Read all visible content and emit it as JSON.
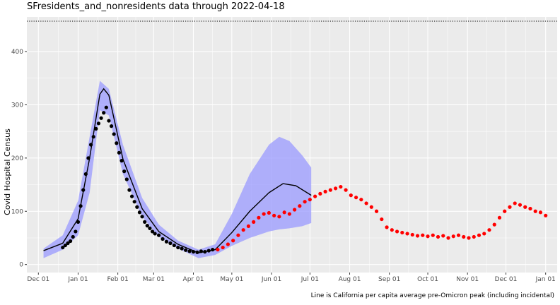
{
  "title": "SFresidents_and_nonresidents data through 2022-04-18",
  "caption": "Line is California per capita average pre-Omicron peak (including incidental)",
  "chart_data": {
    "type": "scatter",
    "title": "SFresidents_and_nonresidents data through 2022-04-18",
    "xlabel": "",
    "ylabel": "Covid Hospital Census",
    "xlim": [
      "2021-11-22",
      "2023-01-10"
    ],
    "ylim": [
      -15,
      465
    ],
    "yticks": [
      0,
      100,
      200,
      300,
      400
    ],
    "xticks": [
      {
        "date": "2021-12-01",
        "label": "Dec 01"
      },
      {
        "date": "2022-01-01",
        "label": "Jan 01"
      },
      {
        "date": "2022-02-01",
        "label": "Feb 01"
      },
      {
        "date": "2022-03-01",
        "label": "Mar 01"
      },
      {
        "date": "2022-04-01",
        "label": "Apr 01"
      },
      {
        "date": "2022-05-01",
        "label": "May 01"
      },
      {
        "date": "2022-06-01",
        "label": "Jun 01"
      },
      {
        "date": "2022-07-01",
        "label": "Jul 01"
      },
      {
        "date": "2022-08-01",
        "label": "Aug 01"
      },
      {
        "date": "2022-09-01",
        "label": "Sep 01"
      },
      {
        "date": "2022-10-01",
        "label": "Oct 01"
      },
      {
        "date": "2022-11-01",
        "label": "Nov 01"
      },
      {
        "date": "2022-12-01",
        "label": "Dec 01"
      },
      {
        "date": "2023-01-01",
        "label": "Jan 01"
      }
    ],
    "grid": true,
    "reference_line": {
      "value": 457,
      "style": "dotted",
      "color": "#000000"
    },
    "colors": {
      "panel": "#ebebeb",
      "grid": "#ffffff",
      "ribbon": "#9999ff",
      "observed": "#000000",
      "recent": "#ff0000"
    },
    "ribbon": [
      {
        "date": "2021-12-05",
        "low": 12,
        "high": 30
      },
      {
        "date": "2021-12-20",
        "low": 28,
        "high": 55
      },
      {
        "date": "2022-01-01",
        "low": 55,
        "high": 120
      },
      {
        "date": "2022-01-10",
        "low": 135,
        "high": 240
      },
      {
        "date": "2022-01-18",
        "low": 290,
        "high": 345
      },
      {
        "date": "2022-01-25",
        "low": 280,
        "high": 330
      },
      {
        "date": "2022-02-05",
        "low": 170,
        "high": 225
      },
      {
        "date": "2022-02-20",
        "low": 90,
        "high": 125
      },
      {
        "date": "2022-03-05",
        "low": 52,
        "high": 75
      },
      {
        "date": "2022-03-20",
        "low": 30,
        "high": 45
      },
      {
        "date": "2022-04-05",
        "low": 12,
        "high": 28
      },
      {
        "date": "2022-04-18",
        "low": 18,
        "high": 38
      },
      {
        "date": "2022-05-01",
        "low": 35,
        "high": 95
      },
      {
        "date": "2022-05-15",
        "low": 50,
        "high": 170
      },
      {
        "date": "2022-05-30",
        "low": 62,
        "high": 225
      },
      {
        "date": "2022-06-07",
        "low": 66,
        "high": 240
      },
      {
        "date": "2022-06-15",
        "low": 68,
        "high": 232
      },
      {
        "date": "2022-06-25",
        "low": 72,
        "high": 205
      },
      {
        "date": "2022-07-02",
        "low": 78,
        "high": 182
      }
    ],
    "projection_line": [
      {
        "date": "2021-12-05",
        "y": 26
      },
      {
        "date": "2021-12-20",
        "y": 40
      },
      {
        "date": "2022-01-01",
        "y": 86
      },
      {
        "date": "2022-01-10",
        "y": 200
      },
      {
        "date": "2022-01-18",
        "y": 320
      },
      {
        "date": "2022-01-21",
        "y": 330
      },
      {
        "date": "2022-01-25",
        "y": 318
      },
      {
        "date": "2022-02-05",
        "y": 198
      },
      {
        "date": "2022-02-20",
        "y": 105
      },
      {
        "date": "2022-03-05",
        "y": 62
      },
      {
        "date": "2022-03-20",
        "y": 38
      },
      {
        "date": "2022-04-05",
        "y": 22
      },
      {
        "date": "2022-04-18",
        "y": 28
      },
      {
        "date": "2022-05-01",
        "y": 60
      },
      {
        "date": "2022-05-15",
        "y": 100
      },
      {
        "date": "2022-05-30",
        "y": 135
      },
      {
        "date": "2022-06-10",
        "y": 152
      },
      {
        "date": "2022-06-20",
        "y": 148
      },
      {
        "date": "2022-07-02",
        "y": 130
      }
    ],
    "series": [
      {
        "color": "#000000",
        "points": [
          {
            "date": "2021-12-20",
            "y": 32
          },
          {
            "date": "2021-12-22",
            "y": 36
          },
          {
            "date": "2021-12-24",
            "y": 40
          },
          {
            "date": "2021-12-26",
            "y": 44
          },
          {
            "date": "2021-12-28",
            "y": 52
          },
          {
            "date": "2021-12-30",
            "y": 62
          },
          {
            "date": "2022-01-01",
            "y": 80
          },
          {
            "date": "2022-01-03",
            "y": 110
          },
          {
            "date": "2022-01-05",
            "y": 140
          },
          {
            "date": "2022-01-07",
            "y": 170
          },
          {
            "date": "2022-01-09",
            "y": 200
          },
          {
            "date": "2022-01-11",
            "y": 225
          },
          {
            "date": "2022-01-13",
            "y": 240
          },
          {
            "date": "2022-01-15",
            "y": 255
          },
          {
            "date": "2022-01-17",
            "y": 265
          },
          {
            "date": "2022-01-19",
            "y": 275
          },
          {
            "date": "2022-01-21",
            "y": 285
          },
          {
            "date": "2022-01-23",
            "y": 295
          },
          {
            "date": "2022-01-25",
            "y": 270
          },
          {
            "date": "2022-01-27",
            "y": 260
          },
          {
            "date": "2022-01-29",
            "y": 245
          },
          {
            "date": "2022-01-31",
            "y": 228
          },
          {
            "date": "2022-02-02",
            "y": 210
          },
          {
            "date": "2022-02-04",
            "y": 195
          },
          {
            "date": "2022-02-06",
            "y": 175
          },
          {
            "date": "2022-02-08",
            "y": 160
          },
          {
            "date": "2022-02-10",
            "y": 140
          },
          {
            "date": "2022-02-12",
            "y": 128
          },
          {
            "date": "2022-02-14",
            "y": 118
          },
          {
            "date": "2022-02-16",
            "y": 108
          },
          {
            "date": "2022-02-18",
            "y": 98
          },
          {
            "date": "2022-02-20",
            "y": 90
          },
          {
            "date": "2022-02-22",
            "y": 80
          },
          {
            "date": "2022-02-24",
            "y": 73
          },
          {
            "date": "2022-02-26",
            "y": 68
          },
          {
            "date": "2022-02-28",
            "y": 62
          },
          {
            "date": "2022-03-02",
            "y": 58
          },
          {
            "date": "2022-03-05",
            "y": 55
          },
          {
            "date": "2022-03-08",
            "y": 48
          },
          {
            "date": "2022-03-11",
            "y": 43
          },
          {
            "date": "2022-03-14",
            "y": 40
          },
          {
            "date": "2022-03-17",
            "y": 36
          },
          {
            "date": "2022-03-20",
            "y": 32
          },
          {
            "date": "2022-03-23",
            "y": 30
          },
          {
            "date": "2022-03-26",
            "y": 27
          },
          {
            "date": "2022-03-29",
            "y": 25
          },
          {
            "date": "2022-04-01",
            "y": 24
          },
          {
            "date": "2022-04-04",
            "y": 23
          },
          {
            "date": "2022-04-07",
            "y": 25
          },
          {
            "date": "2022-04-10",
            "y": 24
          },
          {
            "date": "2022-04-13",
            "y": 26
          },
          {
            "date": "2022-04-16",
            "y": 28
          }
        ]
      },
      {
        "color": "#ff0000",
        "points": [
          {
            "date": "2022-04-20",
            "y": 28
          },
          {
            "date": "2022-04-24",
            "y": 32
          },
          {
            "date": "2022-04-28",
            "y": 38
          },
          {
            "date": "2022-05-02",
            "y": 45
          },
          {
            "date": "2022-05-06",
            "y": 55
          },
          {
            "date": "2022-05-10",
            "y": 65
          },
          {
            "date": "2022-05-14",
            "y": 72
          },
          {
            "date": "2022-05-18",
            "y": 80
          },
          {
            "date": "2022-05-22",
            "y": 88
          },
          {
            "date": "2022-05-26",
            "y": 95
          },
          {
            "date": "2022-05-30",
            "y": 97
          },
          {
            "date": "2022-06-03",
            "y": 92
          },
          {
            "date": "2022-06-07",
            "y": 90
          },
          {
            "date": "2022-06-11",
            "y": 98
          },
          {
            "date": "2022-06-15",
            "y": 95
          },
          {
            "date": "2022-06-19",
            "y": 103
          },
          {
            "date": "2022-06-23",
            "y": 110
          },
          {
            "date": "2022-06-27",
            "y": 118
          },
          {
            "date": "2022-07-01",
            "y": 122
          },
          {
            "date": "2022-07-05",
            "y": 128
          },
          {
            "date": "2022-07-09",
            "y": 133
          },
          {
            "date": "2022-07-13",
            "y": 137
          },
          {
            "date": "2022-07-17",
            "y": 140
          },
          {
            "date": "2022-07-21",
            "y": 143
          },
          {
            "date": "2022-07-25",
            "y": 146
          },
          {
            "date": "2022-07-29",
            "y": 140
          },
          {
            "date": "2022-08-02",
            "y": 130
          },
          {
            "date": "2022-08-06",
            "y": 126
          },
          {
            "date": "2022-08-10",
            "y": 122
          },
          {
            "date": "2022-08-14",
            "y": 115
          },
          {
            "date": "2022-08-18",
            "y": 108
          },
          {
            "date": "2022-08-22",
            "y": 100
          },
          {
            "date": "2022-08-26",
            "y": 85
          },
          {
            "date": "2022-08-30",
            "y": 70
          },
          {
            "date": "2022-09-03",
            "y": 65
          },
          {
            "date": "2022-09-07",
            "y": 62
          },
          {
            "date": "2022-09-11",
            "y": 60
          },
          {
            "date": "2022-09-15",
            "y": 58
          },
          {
            "date": "2022-09-19",
            "y": 56
          },
          {
            "date": "2022-09-23",
            "y": 54
          },
          {
            "date": "2022-09-27",
            "y": 55
          },
          {
            "date": "2022-10-01",
            "y": 53
          },
          {
            "date": "2022-10-05",
            "y": 55
          },
          {
            "date": "2022-10-09",
            "y": 52
          },
          {
            "date": "2022-10-13",
            "y": 54
          },
          {
            "date": "2022-10-17",
            "y": 50
          },
          {
            "date": "2022-10-21",
            "y": 53
          },
          {
            "date": "2022-10-25",
            "y": 55
          },
          {
            "date": "2022-10-29",
            "y": 52
          },
          {
            "date": "2022-11-02",
            "y": 50
          },
          {
            "date": "2022-11-06",
            "y": 52
          },
          {
            "date": "2022-11-10",
            "y": 55
          },
          {
            "date": "2022-11-14",
            "y": 58
          },
          {
            "date": "2022-11-18",
            "y": 65
          },
          {
            "date": "2022-11-22",
            "y": 75
          },
          {
            "date": "2022-11-26",
            "y": 88
          },
          {
            "date": "2022-11-30",
            "y": 100
          },
          {
            "date": "2022-12-04",
            "y": 108
          },
          {
            "date": "2022-12-08",
            "y": 115
          },
          {
            "date": "2022-12-12",
            "y": 112
          },
          {
            "date": "2022-12-16",
            "y": 108
          },
          {
            "date": "2022-12-20",
            "y": 105
          },
          {
            "date": "2022-12-24",
            "y": 100
          },
          {
            "date": "2022-12-28",
            "y": 98
          },
          {
            "date": "2023-01-01",
            "y": 92
          }
        ]
      }
    ]
  }
}
